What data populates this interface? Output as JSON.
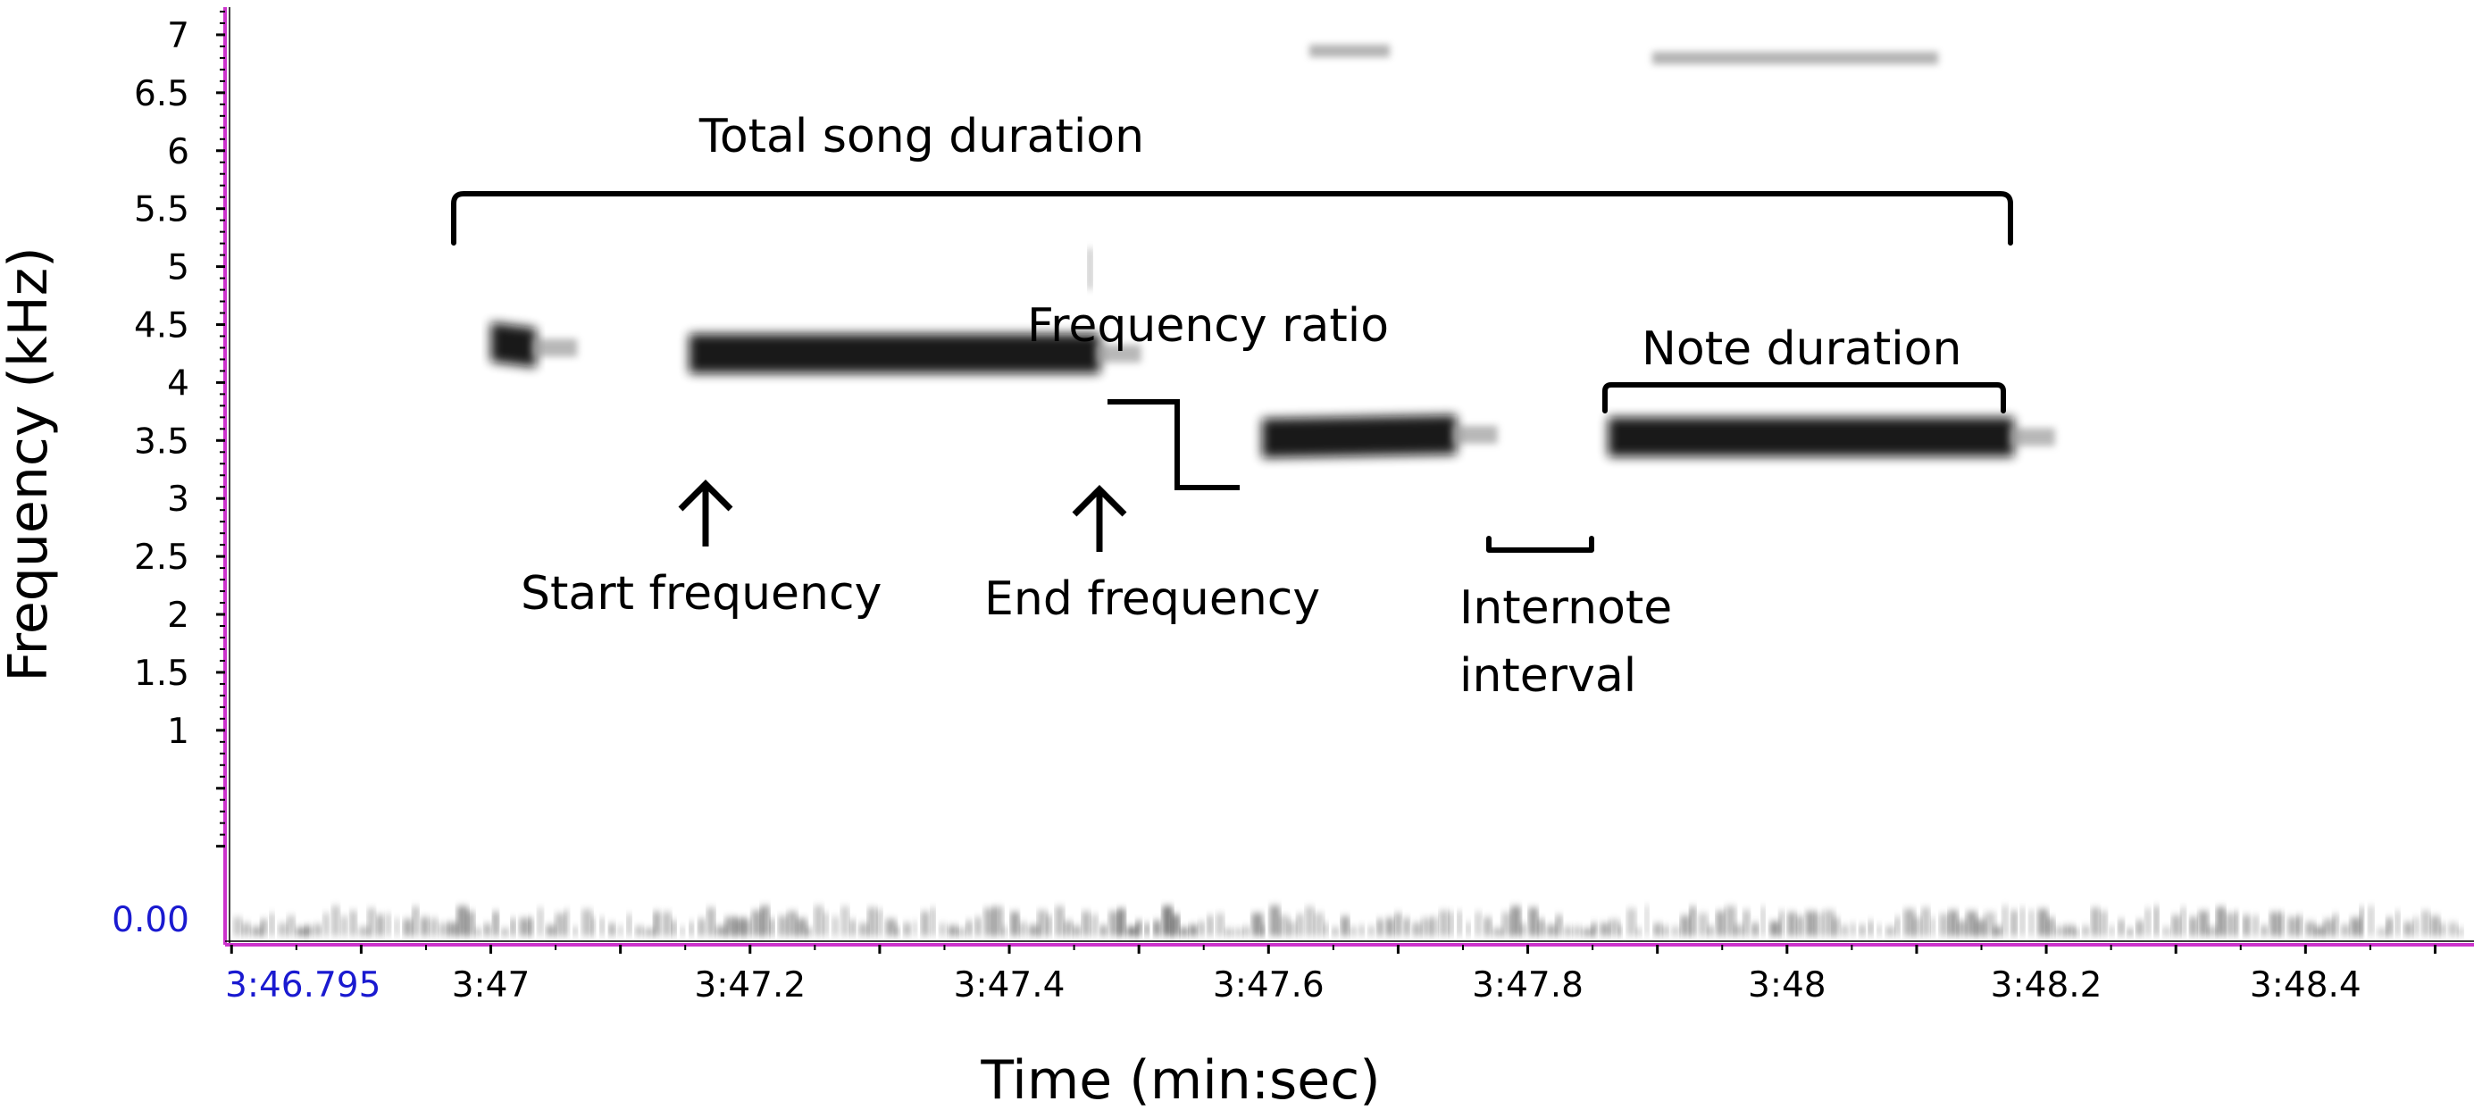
{
  "chart_data": {
    "type": "spectrogram",
    "xlabel": "Time (min:sec)",
    "ylabel": "Frequency (kHz)",
    "x_origin_label": "3:46.795",
    "y_origin_label": "0.00",
    "x_origin_sec": 226.795,
    "xlim_sec": [
      226.795,
      228.53
    ],
    "ylim_khz": [
      -0.85,
      7.3
    ],
    "x_ticks": [
      {
        "t": 227.0,
        "label": "3:47"
      },
      {
        "t": 227.2,
        "label": "3:47.2"
      },
      {
        "t": 227.4,
        "label": "3:47.4"
      },
      {
        "t": 227.6,
        "label": "3:47.6"
      },
      {
        "t": 227.8,
        "label": "3:47.8"
      },
      {
        "t": 228.0,
        "label": "3:48"
      },
      {
        "t": 228.2,
        "label": "3:48.2"
      },
      {
        "t": 228.4,
        "label": "3:48.4"
      }
    ],
    "y_ticks": [
      {
        "v": 1,
        "label": "1"
      },
      {
        "v": 1.5,
        "label": "1.5"
      },
      {
        "v": 2,
        "label": "2"
      },
      {
        "v": 2.5,
        "label": "2.5"
      },
      {
        "v": 3,
        "label": "3"
      },
      {
        "v": 3.5,
        "label": "3.5"
      },
      {
        "v": 4,
        "label": "4"
      },
      {
        "v": 4.5,
        "label": "4.5"
      },
      {
        "v": 5,
        "label": "5"
      },
      {
        "v": 5.5,
        "label": "5.5"
      },
      {
        "v": 6,
        "label": "6"
      },
      {
        "v": 6.5,
        "label": "6.5"
      },
      {
        "v": 7,
        "label": "7"
      }
    ],
    "notes": [
      {
        "t_start": 227.0,
        "t_end": 227.035,
        "f_start": 4.35,
        "f_end": 4.3
      },
      {
        "t_start": 227.153,
        "t_end": 227.47,
        "f_start": 4.25,
        "f_end": 4.25
      },
      {
        "t_start": 227.595,
        "t_end": 227.745,
        "f_start": 3.52,
        "f_end": 3.55
      },
      {
        "t_start": 227.862,
        "t_end": 228.175,
        "f_start": 3.53,
        "f_end": 3.53
      }
    ],
    "annotations": {
      "total_song_duration": "Total song duration",
      "frequency_ratio": "Frequency ratio",
      "note_duration": "Note duration",
      "start_frequency": "Start frequency",
      "end_frequency": "End frequency",
      "internote_interval_line1": "Internote",
      "internote_interval_line2": "interval"
    },
    "colors": {
      "axis": "#cc33cc",
      "origin_label": "#1a1ad0",
      "signal": "#111111"
    }
  }
}
